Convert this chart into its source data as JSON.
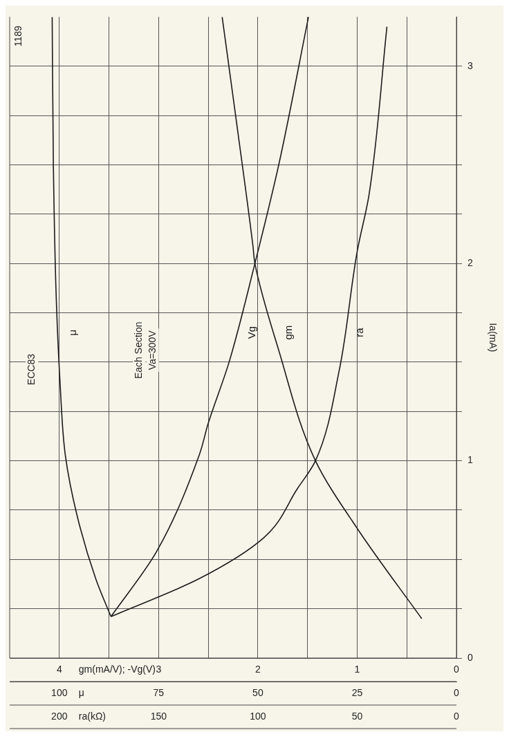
{
  "chart_data": [
    {
      "type": "line",
      "xlabel": "gm(mA/V); -Vg(V)",
      "x2label": "μ",
      "ylabel": "Ia(mA)",
      "xlim": [
        4.5,
        0
      ],
      "xticks": [
        4,
        {
          "value": 3.5,
          "label": null
        },
        3,
        {
          "value": 2.5,
          "label": null
        },
        2,
        {
          "value": 1.5,
          "label": null
        },
        1,
        {
          "value": 0.5,
          "label": null
        },
        0
      ],
      "x2lim": [
        112.5,
        0
      ],
      "x2ticks": [
        100,
        75,
        50,
        25,
        0
      ],
      "ylim": [
        0,
        3.25
      ],
      "yticks": [
        0,
        {
          "value": 0.25,
          "label": null
        },
        {
          "value": 0.5,
          "label": null
        },
        {
          "value": 0.75,
          "label": null
        },
        1,
        {
          "value": 1.25,
          "label": null
        },
        {
          "value": 1.5,
          "label": null
        },
        {
          "value": 1.75,
          "label": null
        },
        2,
        {
          "value": 2.25,
          "label": null
        },
        {
          "value": 2.5,
          "label": null
        },
        {
          "value": 2.75,
          "label": null
        },
        3
      ],
      "grid": true,
      "legend": false,
      "marker": "none",
      "line_style": "solid",
      "annotations": [
        "1189",
        "ECC83",
        "Each Section",
        "Va=300V"
      ],
      "series": [
        {
          "name": "μ",
          "color": "#1a1a1a",
          "axis": "x2",
          "x": [
            87,
            90.8,
            95.5,
            98.5,
            99.8,
            100.8,
            101.5,
            101.8
          ],
          "values": [
            0.21,
            0.4,
            0.72,
            1.03,
            1.39,
            1.84,
            2.5,
            3.25
          ]
        },
        {
          "name": "Vg",
          "color": "#1a1a1a",
          "x": [
            3.48,
            3.02,
            2.59,
            2.5,
            2.29,
            2.03,
            1.79,
            1.49
          ],
          "values": [
            0.21,
            0.54,
            1.03,
            1.19,
            1.5,
            2.0,
            2.5,
            3.25
          ]
        },
        {
          "name": "gm",
          "color": "#1a1a1a",
          "x": [
            0.35,
            0.99,
            1.42,
            1.79,
            2.03,
            2.05,
            2.2,
            2.36
          ],
          "values": [
            0.2,
            0.65,
            1.0,
            1.56,
            2.0,
            2.09,
            2.66,
            3.25
          ]
        }
      ]
    },
    {
      "type": "line",
      "xlabel": "ra(kΩ)",
      "xlim": [
        225,
        0
      ],
      "xticks": [
        200,
        150,
        100,
        50,
        0
      ],
      "ylim": [
        0,
        3.25
      ],
      "tick_labels": "x",
      "marker": "none",
      "line_style": "solid",
      "series": [
        {
          "name": "ra",
          "color": "#1a1a1a",
          "x": [
            174,
            130,
            97,
            80,
            71,
            59,
            50,
            44,
            35
          ],
          "values": [
            0.21,
            0.4,
            0.61,
            0.86,
            1.0,
            1.46,
            2.06,
            2.35,
            3.2
          ]
        }
      ]
    }
  ]
}
